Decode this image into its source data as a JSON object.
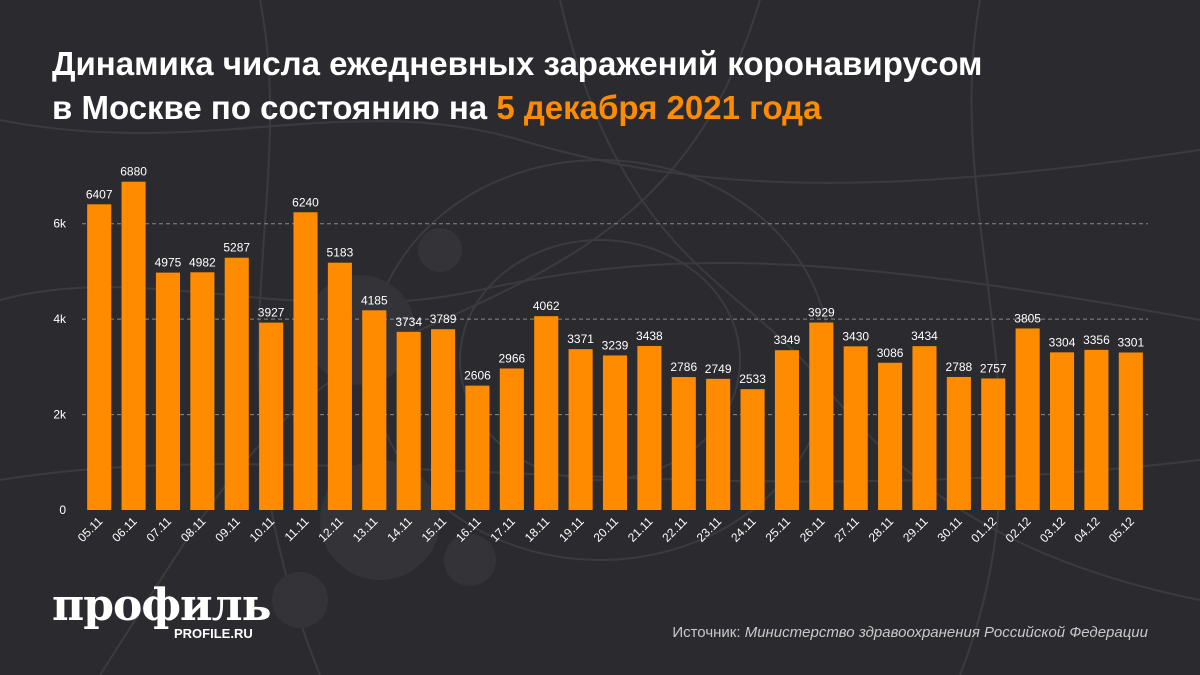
{
  "title": {
    "line1": "Динамика числа ежедневных заражений коронавирусом",
    "line2_prefix": "в Москве по состоянию на ",
    "line2_accent": "5 декабря 2021 года"
  },
  "colors": {
    "background": "#2b2b2f",
    "bar": "#ff8c00",
    "accent": "#ff8c00",
    "text": "#ffffff",
    "grid": "#8a8a8a"
  },
  "chart_data": {
    "type": "bar",
    "categories": [
      "05.11",
      "06.11",
      "07.11",
      "08.11",
      "09.11",
      "10.11",
      "11.11",
      "12.11",
      "13.11",
      "14.11",
      "15.11",
      "16.11",
      "17.11",
      "18.11",
      "19.11",
      "20.11",
      "21.11",
      "22.11",
      "23.11",
      "24.11",
      "25.11",
      "26.11",
      "27.11",
      "28.11",
      "29.11",
      "30.11",
      "01.12",
      "02.12",
      "03.12",
      "04.12",
      "05.12"
    ],
    "values": [
      6407,
      6880,
      4975,
      4982,
      5287,
      3927,
      6240,
      5183,
      4185,
      3734,
      3789,
      2606,
      2966,
      4062,
      3371,
      3239,
      3438,
      2786,
      2749,
      2533,
      3349,
      3929,
      3430,
      3086,
      3434,
      2788,
      2757,
      3805,
      3304,
      3356,
      3301
    ],
    "yticks": [
      0,
      2000,
      4000,
      6000
    ],
    "ytick_labels": [
      "0",
      "2k",
      "4k",
      "6k"
    ],
    "ylim": [
      0,
      7000
    ],
    "grid": true,
    "xlabel": "",
    "ylabel": ""
  },
  "logo": {
    "name": "профиль",
    "site": "PROFILE.RU"
  },
  "source": {
    "label": "Источник: ",
    "value": "Министерство здравоохранения Российской Федерации"
  }
}
